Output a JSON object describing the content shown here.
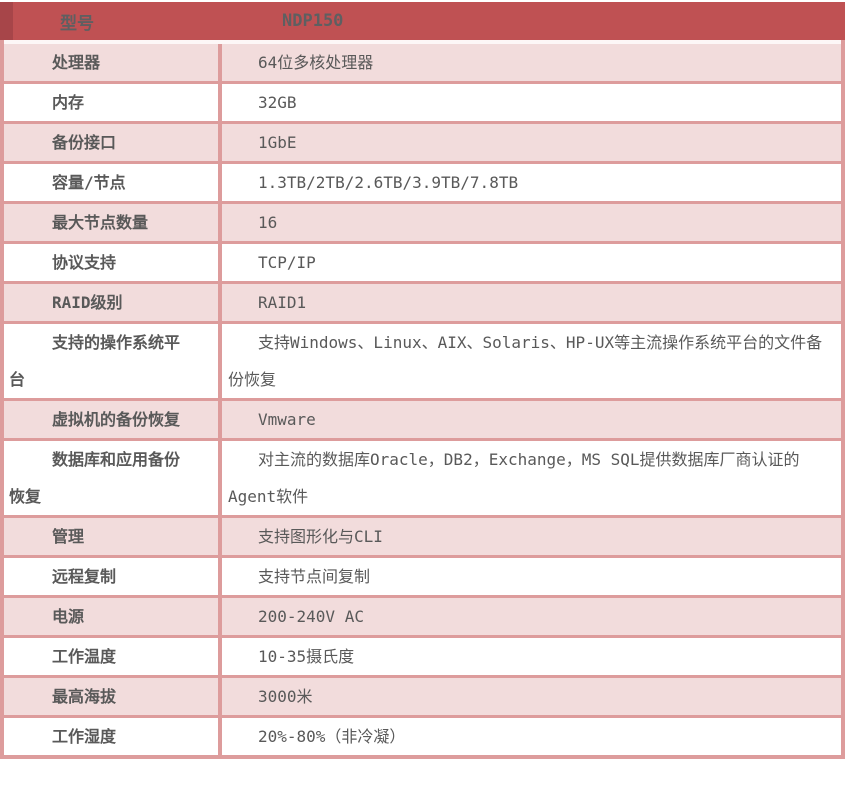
{
  "colors": {
    "header_bg": "#bf5153",
    "header_accent": "#a74549",
    "header_text": "#5e5f61",
    "row_pink": "#f2dcdc",
    "row_white": "#ffffff",
    "border_color": "#dd9c9c",
    "text_color": "#595959"
  },
  "table": {
    "header": {
      "label": "型号",
      "value": "NDP150"
    },
    "rows": [
      {
        "label": "处理器",
        "value": "64位多核处理器"
      },
      {
        "label": "内存",
        "value": "32GB"
      },
      {
        "label": "备份接口",
        "value": "1GbE"
      },
      {
        "label": "容量/节点",
        "value": "1.3TB/2TB/2.6TB/3.9TB/7.8TB"
      },
      {
        "label": "最大节点数量",
        "value": "16"
      },
      {
        "label": "协议支持",
        "value": "TCP/IP"
      },
      {
        "label": "RAID级别",
        "value": "RAID1"
      },
      {
        "label": "支持的操作系统平台",
        "value": "支持Windows、Linux、AIX、Solaris、HP-UX等主流操作系统平台的文件备份恢复"
      },
      {
        "label": "虚拟机的备份恢复",
        "value": "Vmware"
      },
      {
        "label": "数据库和应用备份恢复",
        "value": "对主流的数据库Oracle，DB2，Exchange，MS SQL提供数据库厂商认证的Agent软件"
      },
      {
        "label": "管理",
        "value": "支持图形化与CLI"
      },
      {
        "label": "远程复制",
        "value": "支持节点间复制"
      },
      {
        "label": "电源",
        "value": "200-240V AC"
      },
      {
        "label": "工作温度",
        "value": "10-35摄氏度"
      },
      {
        "label": "最高海拔",
        "value": "3000米"
      },
      {
        "label": "工作湿度",
        "value": "20%-80%（非冷凝）"
      }
    ]
  }
}
